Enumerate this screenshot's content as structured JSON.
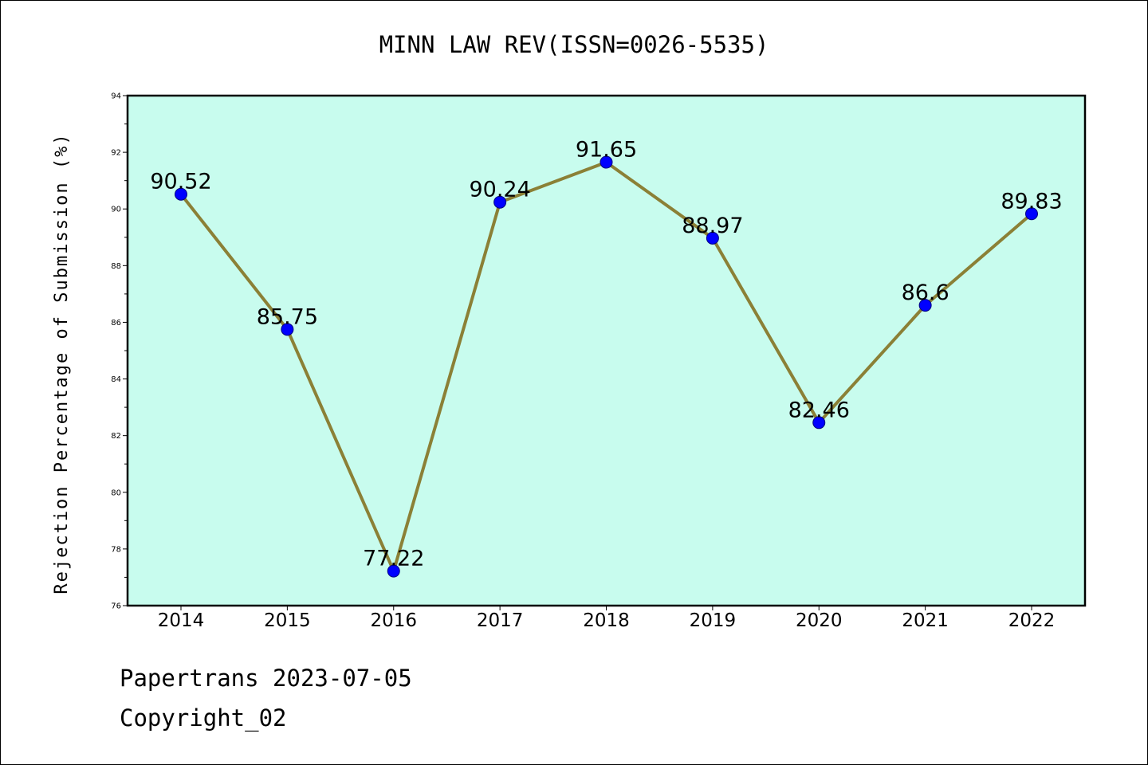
{
  "chart_data": {
    "type": "line",
    "title": "MINN LAW REV(ISSN=0026-5535)",
    "xlabel": "",
    "ylabel": "Rejection Percentage of Submission (%)",
    "categories": [
      "2014",
      "2015",
      "2016",
      "2017",
      "2018",
      "2019",
      "2020",
      "2021",
      "2022"
    ],
    "values": [
      90.52,
      85.75,
      77.22,
      90.24,
      91.65,
      88.97,
      82.46,
      86.6,
      89.83
    ],
    "data_labels": [
      "90.52",
      "85.75",
      "77.22",
      "90.24",
      "91.65",
      "88.97",
      "82.46",
      "86.6",
      "89.83"
    ],
    "ylim": [
      76,
      94
    ],
    "yticks": [
      "76",
      "78",
      "80",
      "82",
      "84",
      "86",
      "88",
      "90",
      "92",
      "94"
    ],
    "grid": false,
    "legend": "none",
    "colors": {
      "plot_background": "#c8fcee",
      "line": "#8b8036",
      "marker": "#0000ff",
      "marker_edge": "#000080"
    }
  },
  "footer": {
    "line1": "Papertrans 2023-07-05",
    "line2": "Copyright_02"
  }
}
